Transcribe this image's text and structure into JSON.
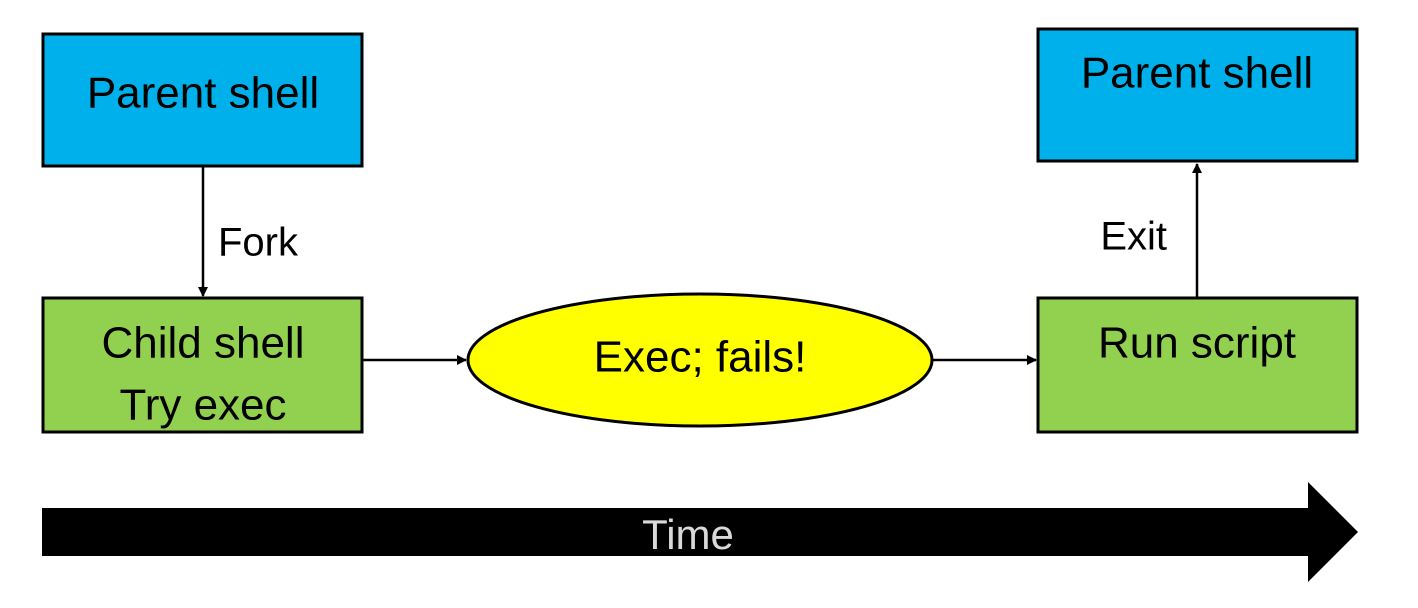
{
  "diagram": {
    "nodes": {
      "parent_left": {
        "label": "Parent shell"
      },
      "child": {
        "line1": "Child shell",
        "line2": "Try exec"
      },
      "exec": {
        "label": "Exec; fails!"
      },
      "run": {
        "label": "Run script"
      },
      "parent_right": {
        "label": "Parent shell"
      }
    },
    "edges": {
      "fork": "Fork",
      "exit": "Exit"
    },
    "timeline": {
      "label": "Time"
    },
    "colors": {
      "blue_fill": "#00B0EA",
      "green_fill": "#92D050",
      "yellow_fill": "#FFFF00",
      "stroke": "#000000",
      "timeline_fill": "#000000",
      "timeline_text": "#D9D9D9"
    }
  }
}
